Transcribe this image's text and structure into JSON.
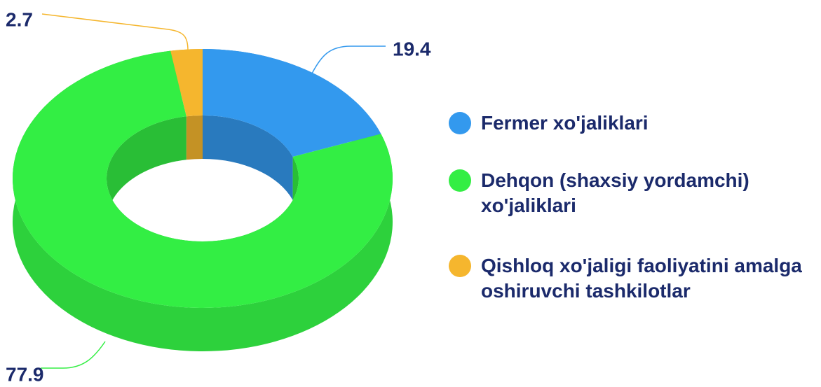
{
  "chart_data": {
    "type": "pie",
    "donut": true,
    "categories": [
      "Fermer xo'jaliklari",
      "Dehqon (shaxsiy yordamchi) xo'jaliklari",
      "Qishloq xo'jaligi faoliyatini amalga oshiruvchi tashkilotlar"
    ],
    "values": [
      19.4,
      77.9,
      2.7
    ],
    "colors": [
      "#3399ee",
      "#33ee44",
      "#f5b62e"
    ]
  }
}
